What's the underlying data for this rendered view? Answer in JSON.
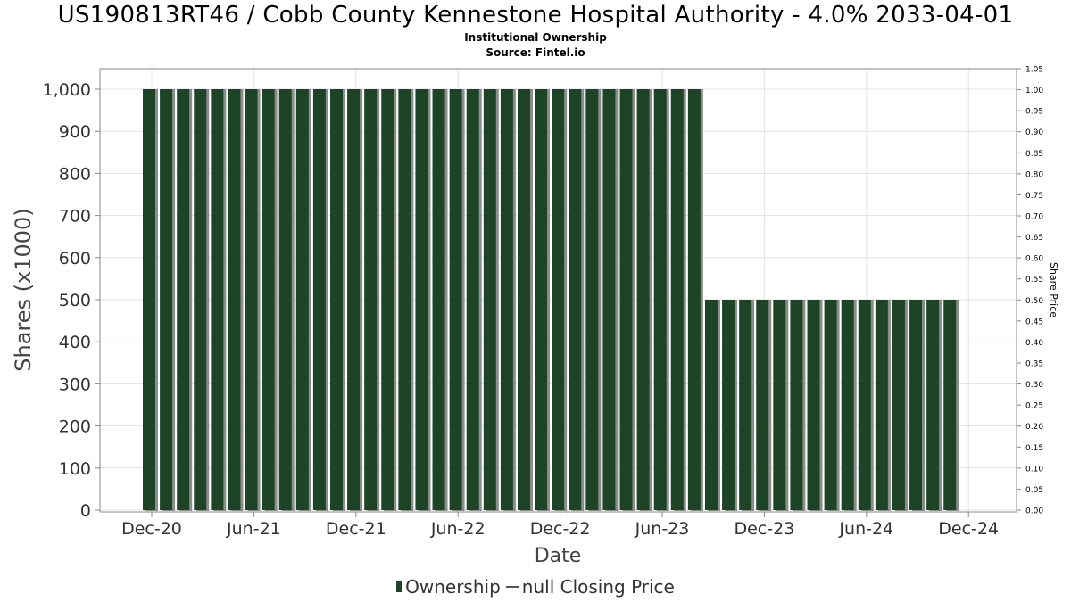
{
  "header": {
    "title": "US190813RT46 / Cobb County Kennestone Hospital Authority - 4.0% 2033-04-01",
    "subtitle1": "Institutional Ownership",
    "subtitle2": "Source: Fintel.io"
  },
  "legend": {
    "ownership_label": "Ownership",
    "price_label": "null Closing Price"
  },
  "colors": {
    "bar": "#1d4427",
    "bar_shadow": "#8a8f8a",
    "grid": "#e3e3e3",
    "axis": "#888888"
  },
  "chart_data": {
    "type": "bar",
    "title": "US190813RT46 / Cobb County Kennestone Hospital Authority - 4.0% 2033-04-01",
    "xlabel": "Date",
    "ylabel": "Shares (x1000)",
    "y2label": "Share Price",
    "ylim": [
      0,
      1000
    ],
    "y2lim": [
      0,
      1.05
    ],
    "yticks": [
      "0",
      "100",
      "200",
      "300",
      "400",
      "500",
      "600",
      "700",
      "800",
      "900",
      "1,000"
    ],
    "y2ticks": [
      "0.00",
      "0.05",
      "0.10",
      "0.15",
      "0.20",
      "0.25",
      "0.30",
      "0.35",
      "0.40",
      "0.45",
      "0.50",
      "0.55",
      "0.60",
      "0.65",
      "0.70",
      "0.75",
      "0.80",
      "0.85",
      "0.90",
      "0.95",
      "1.00",
      "1.05"
    ],
    "xticks": [
      "Dec-20",
      "Jun-21",
      "Dec-21",
      "Jun-22",
      "Dec-22",
      "Jun-23",
      "Dec-23",
      "Jun-24",
      "Dec-24"
    ],
    "grid": true,
    "series": [
      {
        "name": "Ownership",
        "values": [
          1000,
          1000,
          1000,
          1000,
          1000,
          1000,
          1000,
          1000,
          1000,
          1000,
          1000,
          1000,
          1000,
          1000,
          1000,
          1000,
          1000,
          1000,
          1000,
          1000,
          1000,
          1000,
          1000,
          1000,
          1000,
          1000,
          1000,
          1000,
          1000,
          1000,
          1000,
          1000,
          1000,
          500,
          500,
          500,
          500,
          500,
          500,
          500,
          500,
          500,
          500,
          500,
          500,
          500,
          500,
          500
        ]
      },
      {
        "name": "null Closing Price",
        "values": []
      }
    ]
  }
}
